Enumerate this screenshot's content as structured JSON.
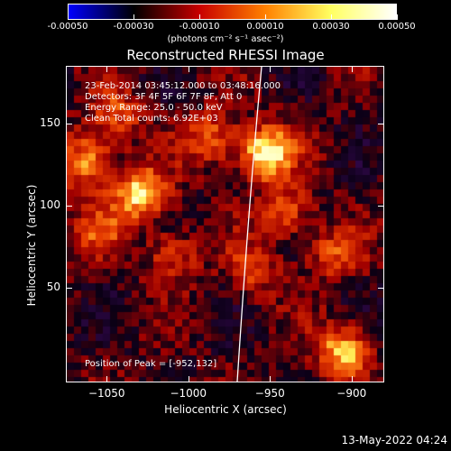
{
  "colorbar": {
    "ticks": [
      "-0.00050",
      "-0.00030",
      "-0.00010",
      "0.00010",
      "0.00030",
      "0.00050"
    ],
    "unit": "(photons cm⁻² s⁻¹ asec⁻²)",
    "range": [
      -0.0005,
      0.0005
    ],
    "colors": [
      "#0000ff",
      "#000000",
      "#c80000",
      "#ff8000",
      "#ffff60",
      "#ffffff"
    ]
  },
  "chart_data": {
    "type": "heatmap",
    "title": "Reconstructed RHESSI Image",
    "xlabel": "Heliocentric X (arcsec)",
    "ylabel": "Heliocentric Y (arcsec)",
    "xlim": [
      -1075,
      -880
    ],
    "ylim": [
      -8,
      185
    ],
    "xticks": [
      "−1050",
      "−1000",
      "−950",
      "−900"
    ],
    "xtick_values": [
      -1050,
      -1000,
      -950,
      -900
    ],
    "yticks": [
      "150",
      "100",
      "50"
    ],
    "ytick_values": [
      150,
      100,
      50
    ],
    "info_lines": [
      "23-Feb-2014 03:45:12.000 to 03:48:16.000",
      "Detectors: 3F 4F 5F 6F 7F 8F, Att 0",
      "Energy Range: 25.0 - 50.0 keV",
      "Clean     Total counts: 6.92E+03"
    ],
    "peak_text": "Position of Peak = [-952,132]",
    "peak": [
      -952,
      132
    ],
    "sources": [
      {
        "x": -952,
        "y": 132,
        "amp": 1.0
      },
      {
        "x": -1030,
        "y": 107,
        "amp": 0.85
      },
      {
        "x": -1063,
        "y": 127,
        "amp": 0.7
      },
      {
        "x": -985,
        "y": 140,
        "amp": 0.55
      },
      {
        "x": -940,
        "y": 95,
        "amp": 0.5
      },
      {
        "x": -1045,
        "y": 155,
        "amp": 0.5
      },
      {
        "x": -1010,
        "y": 70,
        "amp": 0.45
      },
      {
        "x": -905,
        "y": 10,
        "amp": 0.8
      },
      {
        "x": -912,
        "y": 70,
        "amp": 0.45
      },
      {
        "x": -960,
        "y": 60,
        "amp": 0.4
      },
      {
        "x": -1055,
        "y": 85,
        "amp": 0.4
      }
    ],
    "limb_curve": [
      [
        -970,
        -8
      ],
      [
        -963,
        100
      ],
      [
        -955,
        185
      ]
    ]
  },
  "footer": "13-May-2022 04:24"
}
